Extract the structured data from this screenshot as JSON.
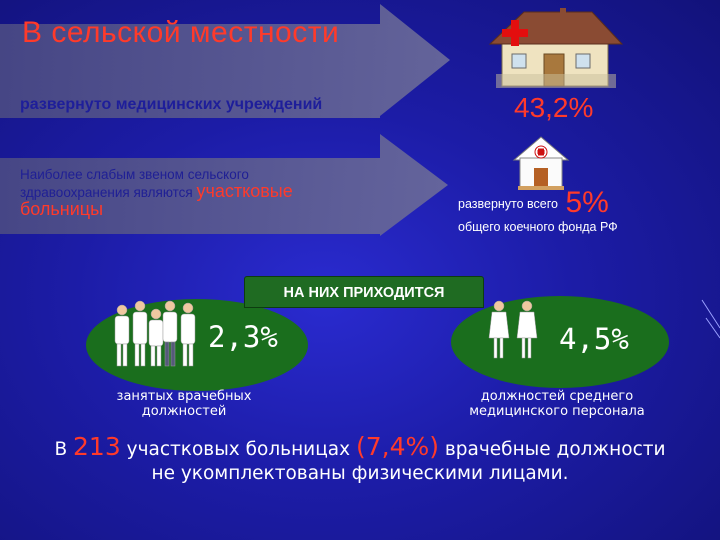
{
  "title": "В сельской местности",
  "arrow1_text": "развернуто медицинских учреждений",
  "arrow2": {
    "text": "Наиболее слабым звеном сельского здравоохранения являются",
    "highlight": "участковые больницы"
  },
  "hospital_share": "43,2%",
  "beds": {
    "prefix": "развернуто всего",
    "value": "5%",
    "suffix": "общего коечного фонда РФ"
  },
  "na_nih_label": "НА НИХ ПРИХОДИТСЯ",
  "doctors": {
    "value": "2,3%",
    "caption": "занятых врачебных должностей"
  },
  "nurses": {
    "value": "4,5%",
    "caption": "должностей среднего медицинского персонала"
  },
  "bottom": {
    "p1": "В ",
    "n1": "213",
    "p2": " участковых больницах ",
    "n2": "(7,4%)",
    "p3": " врачебные должности",
    "line2": "не укомплектованы физическими лицами."
  },
  "icons": [
    "clinic-building-icon",
    "small-clinic-icon",
    "medical-staff-group-icon",
    "nurses-pair-icon"
  ],
  "colors": {
    "background": "#1c1ca6",
    "accent": "#ff3a2a",
    "green": "#1a6e1d",
    "arrow": "#55558a"
  }
}
